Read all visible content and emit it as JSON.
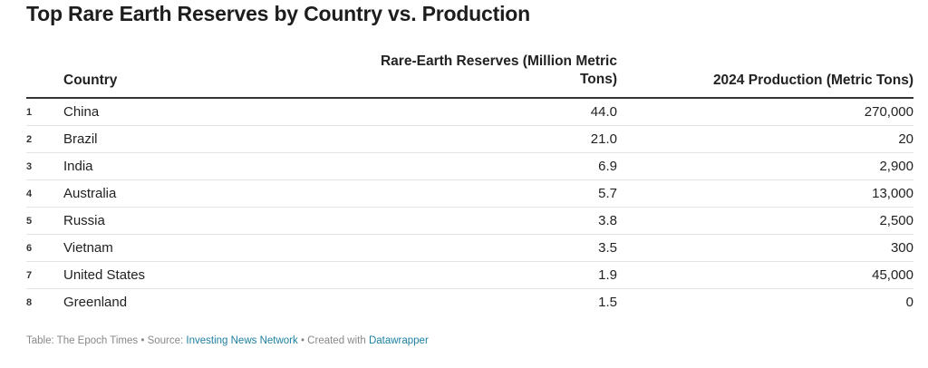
{
  "chart_data": {
    "type": "table",
    "title": "Top Rare Earth Reserves by Country vs. Production",
    "columns": [
      "Country",
      "Rare-Earth Reserves (Million Metric Tons)",
      "2024 Production (Metric Tons)"
    ],
    "rows": [
      {
        "rank": "1",
        "country": "China",
        "reserves": "44.0",
        "production": "270,000"
      },
      {
        "rank": "2",
        "country": "Brazil",
        "reserves": "21.0",
        "production": "20"
      },
      {
        "rank": "3",
        "country": "India",
        "reserves": "6.9",
        "production": "2,900"
      },
      {
        "rank": "4",
        "country": "Australia",
        "reserves": "5.7",
        "production": "13,000"
      },
      {
        "rank": "5",
        "country": "Russia",
        "reserves": "3.8",
        "production": "2,500"
      },
      {
        "rank": "6",
        "country": "Vietnam",
        "reserves": "3.5",
        "production": "300"
      },
      {
        "rank": "7",
        "country": "United States",
        "reserves": "1.9",
        "production": "45,000"
      },
      {
        "rank": "8",
        "country": "Greenland",
        "reserves": "1.5",
        "production": "0"
      }
    ]
  },
  "footer": {
    "prefix": "Table: The Epoch Times • Source: ",
    "source_link": "Investing News Network",
    "middle": " • Created with ",
    "tool_link": "Datawrapper"
  },
  "colors": {
    "link": "#1d81a2",
    "footer_text": "#888888",
    "header_rule": "#333333",
    "row_rule": "#e3e3e3"
  }
}
